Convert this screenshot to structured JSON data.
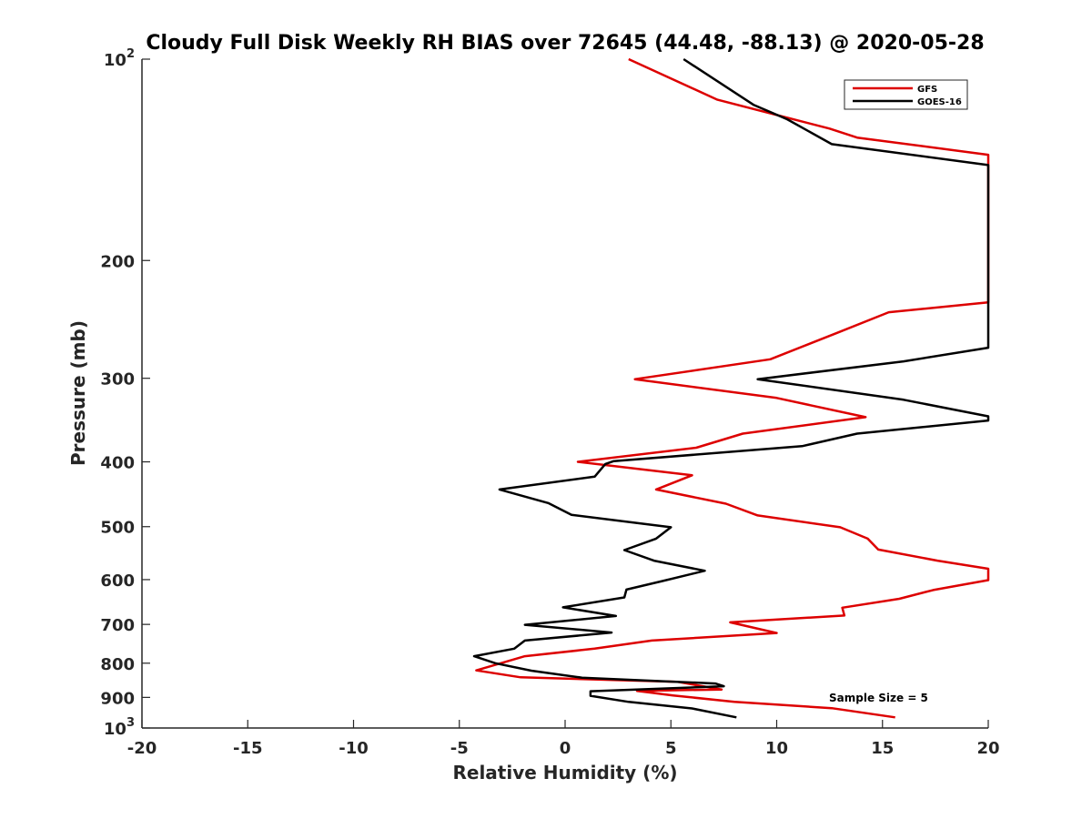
{
  "chart_data": {
    "type": "line",
    "title": "Cloudy Full Disk Weekly RH BIAS over 72645 (44.48, -88.13) @ 2020-05-28",
    "xlabel": "Relative Humidity (%)",
    "ylabel": "Pressure (mb)",
    "xlim": [
      -20,
      20
    ],
    "ylim": [
      100,
      1000
    ],
    "yscale": "log",
    "y_reversed": true,
    "grid": false,
    "legend_position": "top-right",
    "x_ticks": [
      "-20",
      "-15",
      "-10",
      "-5",
      "0",
      "5",
      "10",
      "15",
      "20"
    ],
    "y_tick_values": [
      100,
      200,
      300,
      400,
      500,
      600,
      700,
      800,
      900,
      1000
    ],
    "y_tick_labels": [
      {
        "base": "10",
        "sup": "2"
      },
      {
        "base": "200",
        "sup": ""
      },
      {
        "base": "300",
        "sup": ""
      },
      {
        "base": "400",
        "sup": ""
      },
      {
        "base": "500",
        "sup": ""
      },
      {
        "base": "600",
        "sup": ""
      },
      {
        "base": "700",
        "sup": ""
      },
      {
        "base": "800",
        "sup": ""
      },
      {
        "base": "900",
        "sup": ""
      },
      {
        "base": "10",
        "sup": "3"
      }
    ],
    "annotation": "Sample Size = 5",
    "series": [
      {
        "name": "GFS",
        "color": "#dd0000",
        "points": [
          [
            3.0,
            100
          ],
          [
            7.2,
            115
          ],
          [
            12.5,
            127
          ],
          [
            13.8,
            131
          ],
          [
            20,
            139
          ],
          [
            20,
            231
          ],
          [
            15.3,
            239
          ],
          [
            12.8,
            257
          ],
          [
            9.7,
            281
          ],
          [
            3.3,
            301
          ],
          [
            10.0,
            321
          ],
          [
            14.2,
            343
          ],
          [
            8.4,
            363
          ],
          [
            6.2,
            381
          ],
          [
            0.6,
            400
          ],
          [
            6.0,
            419
          ],
          [
            4.3,
            440
          ],
          [
            7.6,
            462
          ],
          [
            9.1,
            481
          ],
          [
            13.0,
            501
          ],
          [
            14.3,
            521
          ],
          [
            14.8,
            541
          ],
          [
            17.6,
            562
          ],
          [
            20,
            578
          ],
          [
            20,
            601
          ],
          [
            17.4,
            622
          ],
          [
            15.8,
            641
          ],
          [
            13.1,
            661
          ],
          [
            13.2,
            679
          ],
          [
            7.8,
            695
          ],
          [
            10.0,
            721
          ],
          [
            4.1,
            740
          ],
          [
            1.4,
            761
          ],
          [
            -1.9,
            781
          ],
          [
            -4.2,
            820
          ],
          [
            -2.1,
            840
          ],
          [
            5.3,
            853
          ],
          [
            7.4,
            876
          ],
          [
            3.4,
            880
          ],
          [
            5.1,
            894
          ],
          [
            8.0,
            914
          ],
          [
            12.6,
            934
          ],
          [
            15.6,
            964
          ]
        ]
      },
      {
        "name": "GOES-16",
        "color": "#000000",
        "points": [
          [
            5.6,
            100
          ],
          [
            8.9,
            117
          ],
          [
            10.5,
            123
          ],
          [
            12.6,
            134
          ],
          [
            20,
            144
          ],
          [
            20,
            270
          ],
          [
            16.0,
            283
          ],
          [
            9.1,
            301
          ],
          [
            16.0,
            323
          ],
          [
            20,
            342
          ],
          [
            20,
            347
          ],
          [
            13.8,
            363
          ],
          [
            11.2,
            379
          ],
          [
            2.3,
            399
          ],
          [
            1.9,
            403
          ],
          [
            1.4,
            421
          ],
          [
            -3.1,
            440
          ],
          [
            -0.8,
            461
          ],
          [
            0.3,
            480
          ],
          [
            5.0,
            501
          ],
          [
            4.3,
            521
          ],
          [
            2.8,
            542
          ],
          [
            4.2,
            562
          ],
          [
            6.6,
            582
          ],
          [
            4.6,
            603
          ],
          [
            2.9,
            621
          ],
          [
            2.8,
            638
          ],
          [
            -0.1,
            660
          ],
          [
            2.4,
            680
          ],
          [
            -1.9,
            701
          ],
          [
            2.2,
            720
          ],
          [
            -1.9,
            740
          ],
          [
            -2.4,
            761
          ],
          [
            -4.3,
            781
          ],
          [
            -3.3,
            800
          ],
          [
            -1.6,
            821
          ],
          [
            0.8,
            841
          ],
          [
            7.1,
            858
          ],
          [
            7.5,
            866
          ],
          [
            1.2,
            881
          ],
          [
            1.2,
            895
          ],
          [
            3.0,
            914
          ],
          [
            6.0,
            935
          ],
          [
            8.1,
            964
          ]
        ]
      }
    ]
  }
}
